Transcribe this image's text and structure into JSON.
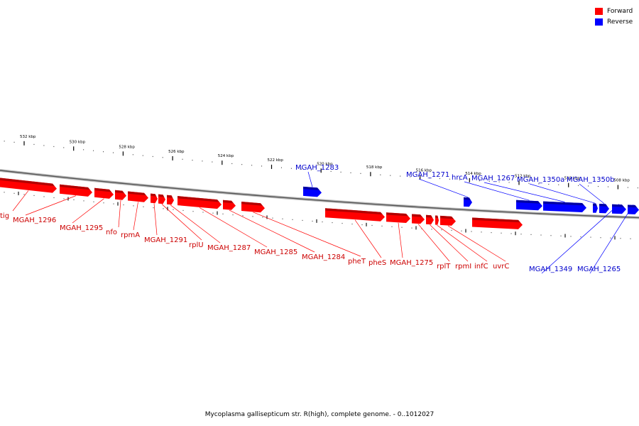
{
  "legend": {
    "forward_label": "Forward",
    "reverse_label": "Reverse",
    "forward_color": "#ff0000",
    "reverse_color": "#0000ff"
  },
  "caption": "Mycoplasma gallisepticum str. R(high), complete genome. - 0..1012027",
  "ticks": [
    {
      "kbp": 532,
      "label": "532 kbp"
    },
    {
      "kbp": 530,
      "label": "530 kbp"
    },
    {
      "kbp": 528,
      "label": "528 kbp"
    },
    {
      "kbp": 526,
      "label": "526 kbp"
    },
    {
      "kbp": 524,
      "label": "524 kbp"
    },
    {
      "kbp": 522,
      "label": "522 kbp"
    },
    {
      "kbp": 520,
      "label": "520 kbp"
    },
    {
      "kbp": 518,
      "label": "518 kbp"
    },
    {
      "kbp": 516,
      "label": "516 kbp"
    },
    {
      "kbp": 514,
      "label": "514 kbp"
    },
    {
      "kbp": 512,
      "label": "512 kbp"
    },
    {
      "kbp": 510,
      "label": "510 kbp"
    },
    {
      "kbp": 508,
      "label": "508 kbp"
    }
  ],
  "genes": [
    {
      "name": "tig",
      "strand": "forward"
    },
    {
      "name": "MGAH_1296",
      "strand": "forward"
    },
    {
      "name": "MGAH_1295",
      "strand": "forward"
    },
    {
      "name": "nfo",
      "strand": "forward"
    },
    {
      "name": "rpmA",
      "strand": "forward"
    },
    {
      "name": "MGAH_1291",
      "strand": "forward"
    },
    {
      "name": "rplU",
      "strand": "forward"
    },
    {
      "name": "MGAH_1287",
      "strand": "forward"
    },
    {
      "name": "MGAH_1285",
      "strand": "forward"
    },
    {
      "name": "MGAH_1284",
      "strand": "forward"
    },
    {
      "name": "pheT",
      "strand": "forward"
    },
    {
      "name": "pheS",
      "strand": "forward"
    },
    {
      "name": "MGAH_1275",
      "strand": "forward"
    },
    {
      "name": "rplT",
      "strand": "forward"
    },
    {
      "name": "rpmI",
      "strand": "forward"
    },
    {
      "name": "infC",
      "strand": "forward"
    },
    {
      "name": "uvrC",
      "strand": "forward"
    },
    {
      "name": "MGAH_1283",
      "strand": "reverse"
    },
    {
      "name": "MGAH_1271",
      "strand": "reverse"
    },
    {
      "name": "hrcA",
      "strand": "reverse"
    },
    {
      "name": "MGAH_1267",
      "strand": "reverse"
    },
    {
      "name": "MGAH_1350a",
      "strand": "reverse"
    },
    {
      "name": "MGAH_1350b",
      "strand": "reverse"
    },
    {
      "name": "MGAH_1349",
      "strand": "reverse"
    },
    {
      "name": "MGAH_1265",
      "strand": "reverse"
    }
  ]
}
